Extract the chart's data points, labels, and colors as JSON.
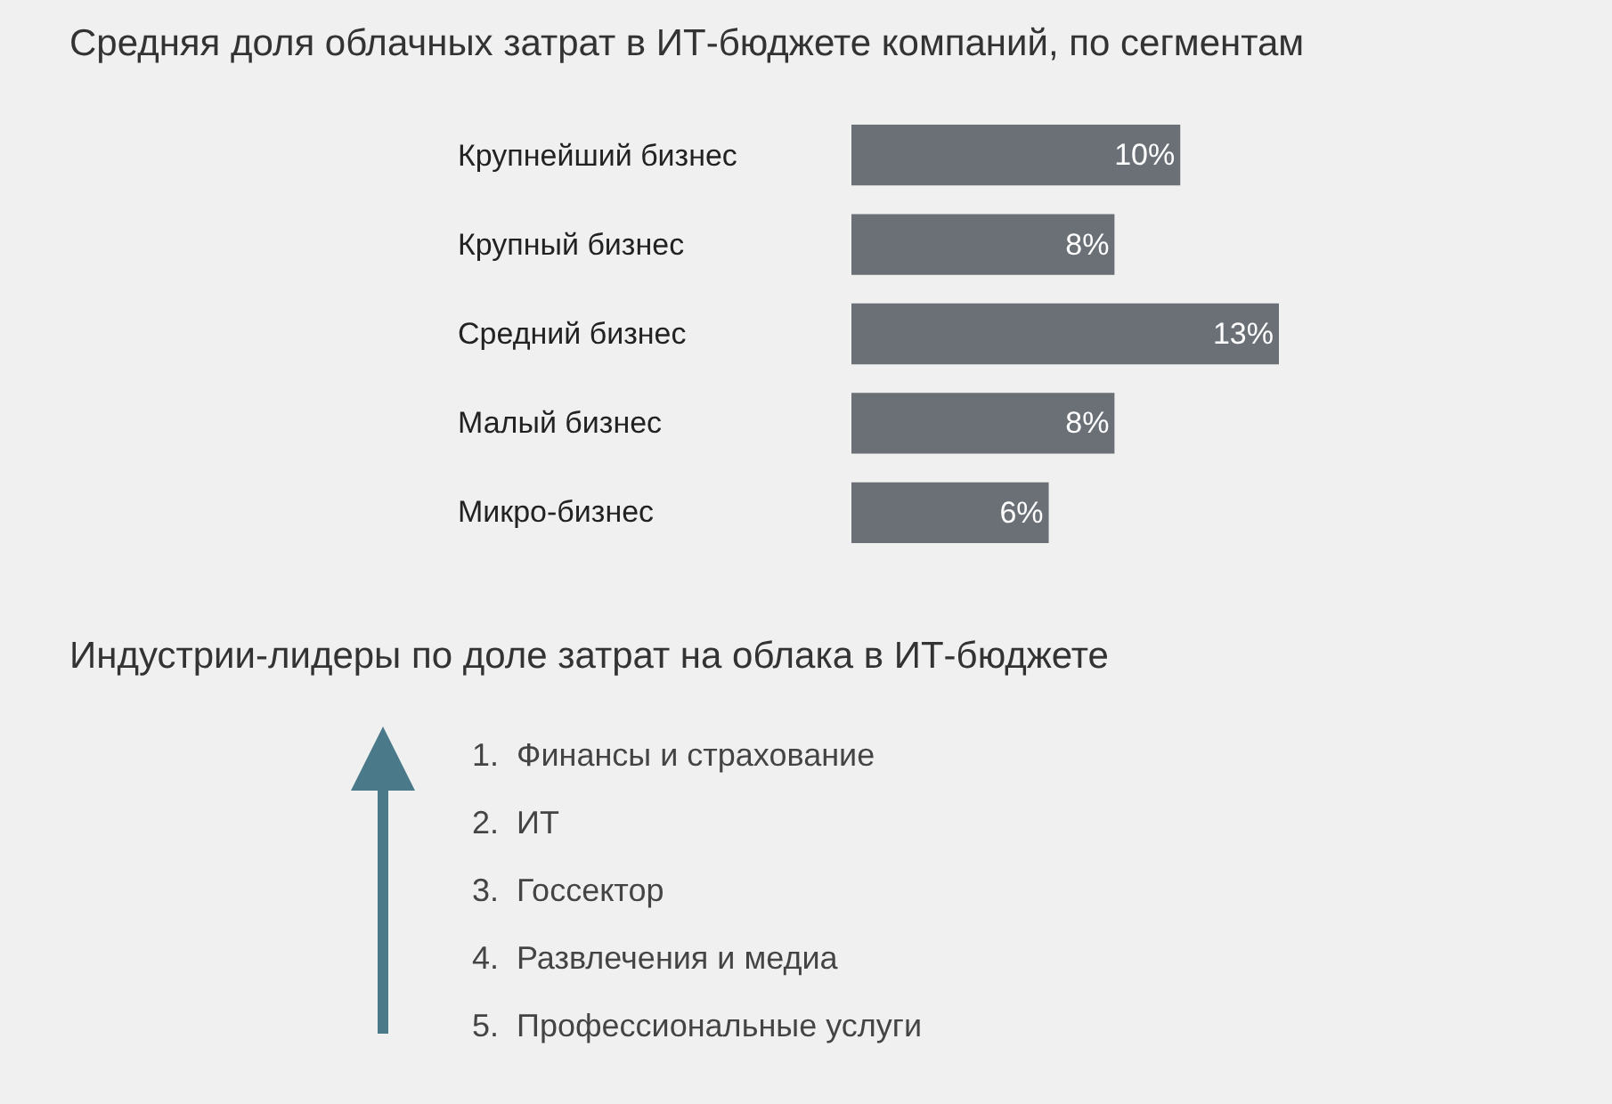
{
  "chart_data": [
    {
      "type": "bar",
      "orientation": "horizontal",
      "title": "Средняя доля облачных затрат в ИТ-бюджете компаний, по сегментам",
      "categories": [
        "Крупнейший бизнес",
        "Крупный бизнес",
        "Средний бизнес",
        "Малый бизнес",
        "Микро-бизнес"
      ],
      "values": [
        10,
        8,
        13,
        8,
        6
      ],
      "value_labels": [
        "10%",
        "8%",
        "13%",
        "8%",
        "6%"
      ],
      "color": "#6b7077"
    },
    {
      "type": "other",
      "title": "Индустрии-лидеры по доле затрат на облака в ИТ-бюджете",
      "annotations": [
        "1.  Финансы и страхование",
        "2.  ИТ",
        "3.  Госсектор",
        "4.  Развлечения и медиа",
        "5.  Профессиональные услуги"
      ]
    }
  ]
}
